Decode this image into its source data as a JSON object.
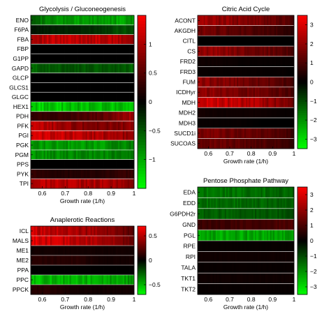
{
  "chart_data": [
    {
      "type": "heatmap",
      "title": "Glycolysis / Gluconeogenesis",
      "xlabel": "Growth rate (1/h)",
      "ylabel": "",
      "xlim": [
        0.55,
        1.0
      ],
      "xticks": [
        "0.6",
        "0.7",
        "0.8",
        "0.9",
        "1"
      ],
      "colorbar": {
        "range": [
          -1.5,
          1.5
        ],
        "ticks": [
          "1",
          "0.5",
          "0",
          "−0.5",
          "−1"
        ],
        "tick_values": [
          1,
          0.5,
          0,
          -0.5,
          -1
        ]
      },
      "rows": [
        {
          "name": "ENO",
          "x": [
            0.55,
            0.65,
            0.75,
            0.85,
            0.95,
            1.0
          ],
          "values": [
            -0.6,
            -0.8,
            -0.9,
            -0.9,
            -1.0,
            -0.9
          ]
        },
        {
          "name": "F6PA",
          "x": [
            0.55,
            0.65,
            0.75,
            0.85,
            0.95,
            1.0
          ],
          "values": [
            -0.1,
            -0.2,
            -0.2,
            -0.3,
            -0.5,
            -0.4
          ]
        },
        {
          "name": "FBA",
          "x": [
            0.55,
            0.65,
            0.75,
            0.85,
            0.95,
            1.0
          ],
          "values": [
            1.0,
            1.1,
            1.1,
            1.1,
            1.0,
            0.8
          ]
        },
        {
          "name": "FBP",
          "x": [
            0.55,
            0.65,
            0.75,
            0.85,
            0.95,
            1.0
          ],
          "values": [
            0,
            0,
            0,
            0,
            0,
            0
          ]
        },
        {
          "name": "G1PP",
          "x": [
            0.55,
            0.65,
            0.75,
            0.85,
            0.95,
            1.0
          ],
          "values": [
            0,
            0,
            0,
            0,
            0,
            0
          ]
        },
        {
          "name": "GAPD",
          "x": [
            0.55,
            0.65,
            0.75,
            0.85,
            0.95,
            1.0
          ],
          "values": [
            -0.6,
            -0.5,
            -0.5,
            -0.5,
            -0.5,
            -0.6
          ]
        },
        {
          "name": "GLCP",
          "x": [
            0.55,
            0.65,
            0.75,
            0.85,
            0.95,
            1.0
          ],
          "values": [
            0,
            0,
            0,
            0,
            0,
            0
          ]
        },
        {
          "name": "GLCS1",
          "x": [
            0.55,
            0.65,
            0.75,
            0.85,
            0.95,
            1.0
          ],
          "values": [
            0,
            0,
            0,
            0,
            0,
            0
          ]
        },
        {
          "name": "GLGC",
          "x": [
            0.55,
            0.65,
            0.75,
            0.85,
            0.95,
            1.0
          ],
          "values": [
            0,
            0,
            0,
            0,
            0,
            0
          ]
        },
        {
          "name": "HEX1",
          "x": [
            0.55,
            0.65,
            0.75,
            0.85,
            0.95,
            1.0
          ],
          "values": [
            -1.2,
            -1.2,
            -1.1,
            -1.1,
            -1.1,
            -1.2
          ]
        },
        {
          "name": "PDH",
          "x": [
            0.55,
            0.65,
            0.75,
            0.85,
            0.95,
            1.0
          ],
          "values": [
            0.3,
            0.3,
            0.4,
            0.5,
            0.8,
            1.0
          ]
        },
        {
          "name": "PFK",
          "x": [
            0.55,
            0.65,
            0.75,
            0.85,
            0.95,
            1.0
          ],
          "values": [
            1.1,
            1.0,
            0.8,
            0.7,
            0.8,
            0.9
          ]
        },
        {
          "name": "PGI",
          "x": [
            0.55,
            0.65,
            0.75,
            0.85,
            0.95,
            1.0
          ],
          "values": [
            1.2,
            1.2,
            1.1,
            1.0,
            0.9,
            0.8
          ]
        },
        {
          "name": "PGK",
          "x": [
            0.55,
            0.65,
            0.75,
            0.85,
            0.95,
            1.0
          ],
          "values": [
            -0.9,
            -0.9,
            -0.9,
            -0.9,
            -0.8,
            -0.7
          ]
        },
        {
          "name": "PGM",
          "x": [
            0.55,
            0.65,
            0.75,
            0.85,
            0.95,
            1.0
          ],
          "values": [
            -0.9,
            -0.8,
            -0.8,
            -0.8,
            -0.7,
            -0.7
          ]
        },
        {
          "name": "PPS",
          "x": [
            0.55,
            0.65,
            0.75,
            0.85,
            0.95,
            1.0
          ],
          "values": [
            0,
            0,
            0,
            0,
            0,
            0
          ]
        },
        {
          "name": "PYK",
          "x": [
            0.55,
            0.65,
            0.75,
            0.85,
            0.95,
            1.0
          ],
          "values": [
            0.3,
            0.2,
            0.2,
            0.2,
            0.3,
            0.3
          ]
        },
        {
          "name": "TPI",
          "x": [
            0.55,
            0.65,
            0.75,
            0.85,
            0.95,
            1.0
          ],
          "values": [
            1.0,
            1.1,
            1.0,
            1.0,
            0.9,
            0.8
          ]
        }
      ]
    },
    {
      "type": "heatmap",
      "title": "Citric Acid Cycle",
      "xlabel": "Growth rate (1/h)",
      "ylabel": "",
      "xlim": [
        0.55,
        1.0
      ],
      "xticks": [
        "0.6",
        "0.7",
        "0.8",
        "0.9",
        "1"
      ],
      "colorbar": {
        "range": [
          -3.5,
          3.5
        ],
        "ticks": [
          "3",
          "2",
          "1",
          "0",
          "−1",
          "−2",
          "−3"
        ],
        "tick_values": [
          3,
          2,
          1,
          0,
          -1,
          -2,
          -3
        ]
      },
      "rows": [
        {
          "name": "ACONT",
          "x": [
            0.55,
            0.65,
            0.75,
            0.85,
            0.95,
            1.0
          ],
          "values": [
            2.2,
            2.0,
            1.8,
            1.6,
            1.3,
            1.0
          ]
        },
        {
          "name": "AKGDH",
          "x": [
            0.55,
            0.65,
            0.75,
            0.85,
            0.95,
            1.0
          ],
          "values": [
            1.6,
            1.4,
            1.2,
            1.0,
            0.7,
            0.5
          ]
        },
        {
          "name": "CITL",
          "x": [
            0.55,
            0.65,
            0.75,
            0.85,
            0.95,
            1.0
          ],
          "values": [
            0,
            0,
            0,
            0,
            0,
            0
          ]
        },
        {
          "name": "CS",
          "x": [
            0.55,
            0.65,
            0.75,
            0.85,
            0.95,
            1.0
          ],
          "values": [
            2.0,
            1.9,
            1.7,
            1.5,
            1.2,
            0.9
          ]
        },
        {
          "name": "FRD2",
          "x": [
            0.55,
            0.65,
            0.75,
            0.85,
            0.95,
            1.0
          ],
          "values": [
            0.2,
            0.2,
            0.1,
            0.1,
            0.1,
            0.1
          ]
        },
        {
          "name": "FRD3",
          "x": [
            0.55,
            0.65,
            0.75,
            0.85,
            0.95,
            1.0
          ],
          "values": [
            0.1,
            0.1,
            0.1,
            0.1,
            0.1,
            0.0
          ]
        },
        {
          "name": "FUM",
          "x": [
            0.55,
            0.65,
            0.75,
            0.85,
            0.95,
            1.0
          ],
          "values": [
            1.9,
            1.8,
            1.6,
            1.4,
            1.1,
            0.8
          ]
        },
        {
          "name": "ICDHyr",
          "x": [
            0.55,
            0.65,
            0.75,
            0.85,
            0.95,
            1.0
          ],
          "values": [
            2.0,
            1.8,
            1.6,
            1.5,
            1.2,
            0.9
          ]
        },
        {
          "name": "MDH",
          "x": [
            0.55,
            0.65,
            0.75,
            0.85,
            0.95,
            1.0
          ],
          "values": [
            2.8,
            2.7,
            2.5,
            2.2,
            1.8,
            1.4
          ]
        },
        {
          "name": "MDH2",
          "x": [
            0.55,
            0.65,
            0.75,
            0.85,
            0.95,
            1.0
          ],
          "values": [
            0.3,
            0.2,
            0.2,
            0.2,
            0.1,
            0.1
          ]
        },
        {
          "name": "MDH3",
          "x": [
            0.55,
            0.65,
            0.75,
            0.85,
            0.95,
            1.0
          ],
          "values": [
            0.1,
            0.1,
            0.1,
            0.0,
            0.0,
            0.0
          ]
        },
        {
          "name": "SUCD1i",
          "x": [
            0.55,
            0.65,
            0.75,
            0.85,
            0.95,
            1.0
          ],
          "values": [
            1.7,
            1.6,
            1.4,
            1.3,
            1.0,
            0.7
          ]
        },
        {
          "name": "SUCOAS",
          "x": [
            0.55,
            0.65,
            0.75,
            0.85,
            0.95,
            1.0
          ],
          "values": [
            1.5,
            1.4,
            1.3,
            1.1,
            0.9,
            0.6
          ]
        }
      ]
    },
    {
      "type": "heatmap",
      "title": "Anaplerotic Reactions",
      "xlabel": "Growth rate (1/h)",
      "ylabel": "",
      "xlim": [
        0.55,
        1.0
      ],
      "xticks": [
        "0.6",
        "0.7",
        "0.8",
        "0.9",
        "1"
      ],
      "colorbar": {
        "range": [
          -0.7,
          0.7
        ],
        "ticks": [
          "0.5",
          "0",
          "−0.5"
        ],
        "tick_values": [
          0.5,
          0,
          -0.5
        ]
      },
      "rows": [
        {
          "name": "ICL",
          "x": [
            0.55,
            0.65,
            0.75,
            0.85,
            0.95,
            1.0
          ],
          "values": [
            0.55,
            0.5,
            0.45,
            0.4,
            0.3,
            0.2
          ]
        },
        {
          "name": "MALS",
          "x": [
            0.55,
            0.65,
            0.75,
            0.85,
            0.95,
            1.0
          ],
          "values": [
            0.6,
            0.55,
            0.5,
            0.45,
            0.35,
            0.25
          ]
        },
        {
          "name": "ME1",
          "x": [
            0.55,
            0.65,
            0.75,
            0.85,
            0.95,
            1.0
          ],
          "values": [
            0.05,
            0.05,
            0.05,
            0.05,
            0.05,
            0.05
          ]
        },
        {
          "name": "ME2",
          "x": [
            0.55,
            0.65,
            0.75,
            0.85,
            0.95,
            1.0
          ],
          "values": [
            0.1,
            0.1,
            0.1,
            0.05,
            0.05,
            0.05
          ]
        },
        {
          "name": "PPA",
          "x": [
            0.55,
            0.65,
            0.75,
            0.85,
            0.95,
            1.0
          ],
          "values": [
            0,
            0,
            0,
            0,
            0,
            0
          ]
        },
        {
          "name": "PPC",
          "x": [
            0.55,
            0.65,
            0.75,
            0.85,
            0.95,
            1.0
          ],
          "values": [
            -0.5,
            -0.5,
            -0.5,
            -0.45,
            -0.45,
            -0.4
          ]
        },
        {
          "name": "PPCK",
          "x": [
            0.55,
            0.65,
            0.75,
            0.85,
            0.95,
            1.0
          ],
          "values": [
            0.1,
            0.1,
            0.05,
            0.05,
            0.05,
            0.05
          ]
        }
      ]
    },
    {
      "type": "heatmap",
      "title": "Pentose Phosphate Pathway",
      "xlabel": "Growth rate (1/h)",
      "ylabel": "",
      "xlim": [
        0.55,
        1.0
      ],
      "xticks": [
        "0.6",
        "0.7",
        "0.8",
        "0.9",
        "1"
      ],
      "colorbar": {
        "range": [
          -3.5,
          3.5
        ],
        "ticks": [
          "3",
          "2",
          "1",
          "0",
          "−1",
          "−2",
          "−3"
        ],
        "tick_values": [
          3,
          2,
          1,
          0,
          -1,
          -2,
          -3
        ]
      },
      "rows": [
        {
          "name": "EDA",
          "x": [
            0.55,
            0.65,
            0.75,
            0.85,
            0.95,
            1.0
          ],
          "values": [
            -1.6,
            -1.6,
            -1.5,
            -1.5,
            -1.4,
            -1.3
          ]
        },
        {
          "name": "EDD",
          "x": [
            0.55,
            0.65,
            0.75,
            0.85,
            0.95,
            1.0
          ],
          "values": [
            -1.5,
            -1.5,
            -1.4,
            -1.4,
            -1.3,
            -1.2
          ]
        },
        {
          "name": "G6PDH2r",
          "x": [
            0.55,
            0.65,
            0.75,
            0.85,
            0.95,
            1.0
          ],
          "values": [
            -1.3,
            -1.3,
            -1.2,
            -1.2,
            -1.1,
            -1.0
          ]
        },
        {
          "name": "GND",
          "x": [
            0.55,
            0.65,
            0.75,
            0.85,
            0.95,
            1.0
          ],
          "values": [
            0.8,
            0.8,
            0.9,
            0.9,
            1.0,
            1.1
          ]
        },
        {
          "name": "PGL",
          "x": [
            0.55,
            0.65,
            0.75,
            0.85,
            0.95,
            1.0
          ],
          "values": [
            -2.3,
            -2.3,
            -2.3,
            -2.2,
            -2.2,
            -2.1
          ]
        },
        {
          "name": "RPE",
          "x": [
            0.55,
            0.65,
            0.75,
            0.85,
            0.95,
            1.0
          ],
          "values": [
            0.1,
            0.1,
            0.1,
            0.1,
            0.1,
            0.1
          ]
        },
        {
          "name": "RPI",
          "x": [
            0.55,
            0.65,
            0.75,
            0.85,
            0.95,
            1.0
          ],
          "values": [
            0.2,
            0.2,
            0.2,
            0.2,
            0.2,
            0.2
          ]
        },
        {
          "name": "TALA",
          "x": [
            0.55,
            0.65,
            0.75,
            0.85,
            0.95,
            1.0
          ],
          "values": [
            0.1,
            0.1,
            0.1,
            0.1,
            0.1,
            0.1
          ]
        },
        {
          "name": "TKT1",
          "x": [
            0.55,
            0.65,
            0.75,
            0.85,
            0.95,
            1.0
          ],
          "values": [
            0.2,
            0.2,
            0.2,
            0.2,
            0.2,
            0.2
          ]
        },
        {
          "name": "TKT2",
          "x": [
            0.55,
            0.65,
            0.75,
            0.85,
            0.95,
            1.0
          ],
          "values": [
            0.1,
            0.1,
            0.1,
            0.1,
            0.1,
            0.1
          ]
        }
      ]
    }
  ],
  "colors": {
    "high": "#ff0000",
    "zero": "#000000",
    "low": "#00ff00"
  }
}
